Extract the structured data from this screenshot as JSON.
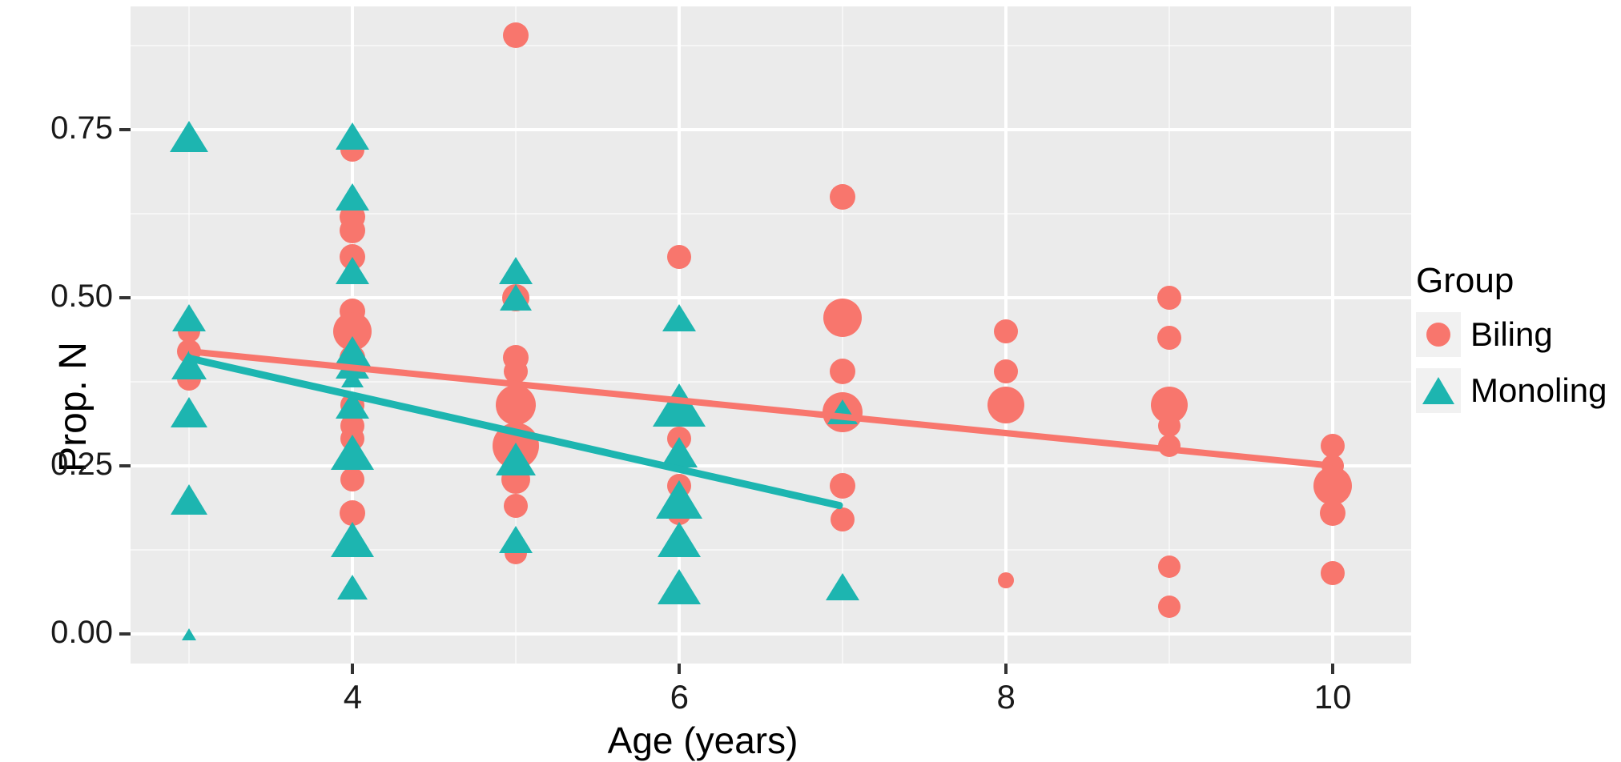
{
  "chart_data": {
    "type": "scatter",
    "title": "",
    "xlabel": "Age (years)",
    "ylabel": "Prop. N",
    "xlim": [
      2.64,
      10.48
    ],
    "ylim": [
      -0.044,
      0.933
    ],
    "x_major_ticks": [
      4,
      6,
      8,
      10
    ],
    "x_tick_labels": [
      "4",
      "6",
      "8",
      "10"
    ],
    "x_minor_gridlines": [
      3,
      5,
      7,
      9
    ],
    "y_major_ticks": [
      0.0,
      0.25,
      0.5,
      0.75
    ],
    "y_tick_labels": [
      "0.00",
      "0.25",
      "0.50",
      "0.75"
    ],
    "y_minor_gridlines": [
      0.125,
      0.375,
      0.625,
      0.875
    ],
    "grid": true,
    "panel_bg": "#EBEBEB",
    "grid_color": "#FFFFFF",
    "legend": {
      "title": "Group",
      "position": "right",
      "entries": [
        {
          "label": "Biling",
          "marker": "circle",
          "color": "#F8766D"
        },
        {
          "label": "Monoling",
          "marker": "triangle",
          "color": "#1DB5B0"
        }
      ]
    },
    "series": [
      {
        "name": "Biling",
        "marker": "circle",
        "color": "#F8766D",
        "note": "points are [age, prop_n, marker_px_size]",
        "points": [
          [
            3,
            0.45,
            28
          ],
          [
            3,
            0.42,
            30
          ],
          [
            3,
            0.38,
            30
          ],
          [
            4,
            0.72,
            30
          ],
          [
            4,
            0.62,
            32
          ],
          [
            4,
            0.6,
            32
          ],
          [
            4,
            0.56,
            32
          ],
          [
            4,
            0.48,
            32
          ],
          [
            4,
            0.45,
            48
          ],
          [
            4,
            0.41,
            32
          ],
          [
            4,
            0.34,
            30
          ],
          [
            4,
            0.31,
            30
          ],
          [
            4,
            0.29,
            30
          ],
          [
            4,
            0.23,
            30
          ],
          [
            4,
            0.18,
            32
          ],
          [
            5,
            0.89,
            32
          ],
          [
            5,
            0.5,
            34
          ],
          [
            5,
            0.41,
            32
          ],
          [
            5,
            0.39,
            30
          ],
          [
            5,
            0.34,
            50
          ],
          [
            5,
            0.28,
            58
          ],
          [
            5,
            0.23,
            36
          ],
          [
            5,
            0.19,
            30
          ],
          [
            5,
            0.12,
            28
          ],
          [
            6,
            0.56,
            30
          ],
          [
            6,
            0.29,
            30
          ],
          [
            6,
            0.22,
            30
          ],
          [
            6,
            0.18,
            30
          ],
          [
            7,
            0.65,
            32
          ],
          [
            7,
            0.47,
            48
          ],
          [
            7,
            0.39,
            32
          ],
          [
            7,
            0.33,
            50
          ],
          [
            7,
            0.22,
            32
          ],
          [
            7,
            0.17,
            30
          ],
          [
            8,
            0.45,
            30
          ],
          [
            8,
            0.39,
            30
          ],
          [
            8,
            0.34,
            46
          ],
          [
            8,
            0.08,
            20
          ],
          [
            9,
            0.5,
            30
          ],
          [
            9,
            0.44,
            30
          ],
          [
            9,
            0.34,
            46
          ],
          [
            9,
            0.31,
            28
          ],
          [
            9,
            0.28,
            28
          ],
          [
            9,
            0.1,
            28
          ],
          [
            9,
            0.04,
            28
          ],
          [
            10,
            0.28,
            30
          ],
          [
            10,
            0.25,
            28
          ],
          [
            10,
            0.22,
            48
          ],
          [
            10,
            0.18,
            32
          ],
          [
            10,
            0.09,
            30
          ]
        ]
      },
      {
        "name": "Monoling",
        "marker": "triangle",
        "color": "#1DB5B0",
        "note": "points are [age, prop_n, marker_px_size]",
        "points": [
          [
            3,
            0.74,
            48
          ],
          [
            3,
            0.47,
            42
          ],
          [
            3,
            0.4,
            44
          ],
          [
            3,
            0.33,
            46
          ],
          [
            3,
            0.2,
            46
          ],
          [
            3,
            0.0,
            18
          ],
          [
            4,
            0.74,
            42
          ],
          [
            4,
            0.65,
            42
          ],
          [
            4,
            0.54,
            42
          ],
          [
            4,
            0.42,
            46
          ],
          [
            4,
            0.4,
            42
          ],
          [
            4,
            0.38,
            28
          ],
          [
            4,
            0.34,
            42
          ],
          [
            4,
            0.27,
            54
          ],
          [
            4,
            0.14,
            54
          ],
          [
            4,
            0.07,
            38
          ],
          [
            5,
            0.54,
            42
          ],
          [
            5,
            0.5,
            40
          ],
          [
            5,
            0.26,
            50
          ],
          [
            5,
            0.14,
            42
          ],
          [
            6,
            0.47,
            42
          ],
          [
            6,
            0.34,
            66
          ],
          [
            6,
            0.27,
            46
          ],
          [
            6,
            0.2,
            58
          ],
          [
            6,
            0.14,
            54
          ],
          [
            6,
            0.07,
            54
          ],
          [
            7,
            0.33,
            38
          ],
          [
            7,
            0.07,
            42
          ]
        ]
      }
    ],
    "trend_lines": [
      {
        "series": "Biling",
        "color": "#F8766D",
        "x1": 3,
        "y1": 0.42,
        "x2": 10,
        "y2": 0.25,
        "width": 8
      },
      {
        "series": "Monoling",
        "color": "#1DB5B0",
        "x1": 3,
        "y1": 0.41,
        "x2": 7,
        "y2": 0.19,
        "width": 9
      }
    ]
  }
}
